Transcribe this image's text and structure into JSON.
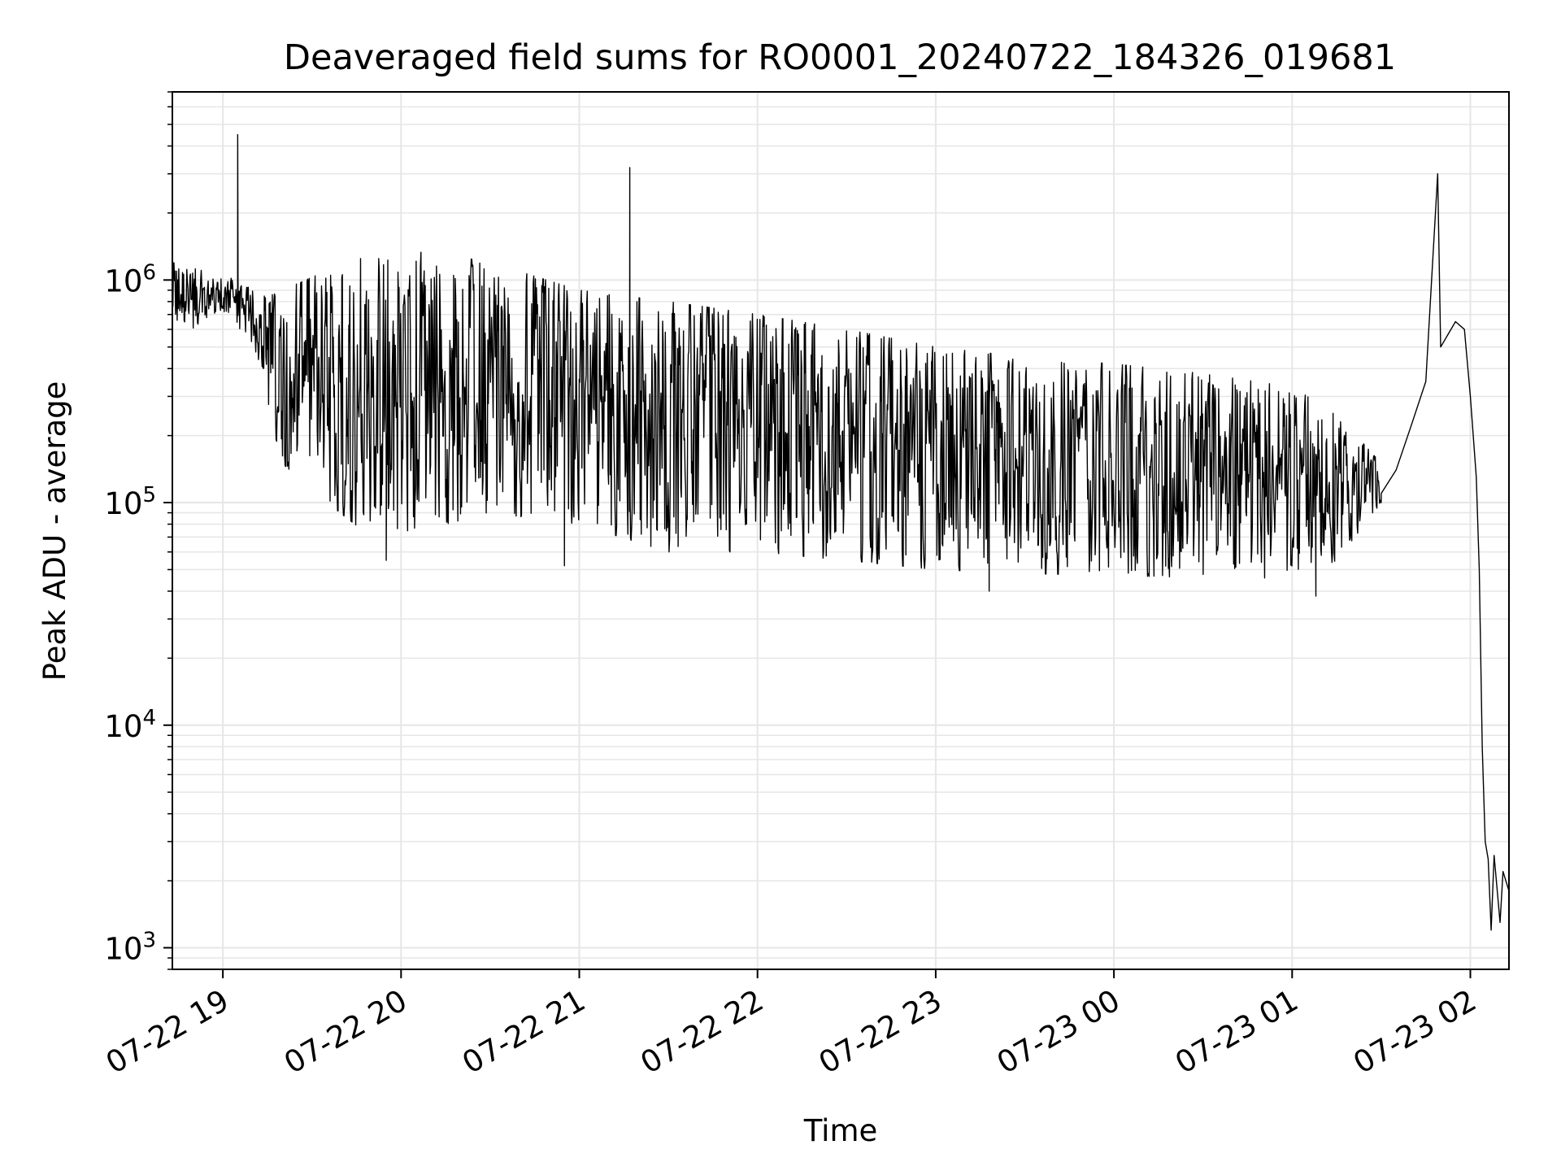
{
  "chart_data": {
    "type": "line",
    "title": "Deaveraged field sums for RO0001_20240722_184326_019681",
    "xlabel": "Time",
    "ylabel": "Peak ADU - average",
    "yscale": "log",
    "ylim": [
      800,
      7000000
    ],
    "xlim": [
      "2024-07-22 18:43",
      "2024-07-23 02:13"
    ],
    "grid": true,
    "line_color": "#000000",
    "grid_color": "#e6e6e6",
    "x_ticks": [
      {
        "t": "2024-07-22 19:00",
        "label": "07-22 19"
      },
      {
        "t": "2024-07-22 20:00",
        "label": "07-22 20"
      },
      {
        "t": "2024-07-22 21:00",
        "label": "07-22 21"
      },
      {
        "t": "2024-07-22 22:00",
        "label": "07-22 22"
      },
      {
        "t": "2024-07-22 23:00",
        "label": "07-22 23"
      },
      {
        "t": "2024-07-23 00:00",
        "label": "07-23 00"
      },
      {
        "t": "2024-07-23 01:00",
        "label": "07-23 01"
      },
      {
        "t": "2024-07-23 02:00",
        "label": "07-23 02"
      }
    ],
    "y_ticks": [
      {
        "v": 1000,
        "base": "10",
        "exp": "3"
      },
      {
        "v": 10000,
        "base": "10",
        "exp": "4"
      },
      {
        "v": 100000,
        "base": "10",
        "exp": "5"
      },
      {
        "v": 1000000,
        "base": "10",
        "exp": "6"
      }
    ],
    "series": [
      {
        "envelope": [
          {
            "t": "2024-07-22 18:43",
            "low": 600000,
            "high": 1200000
          },
          {
            "t": "2024-07-22 19:05",
            "low": 600000,
            "high": 1000000
          },
          {
            "t": "2024-07-22 19:10",
            "low": 500000,
            "high": 900000
          },
          {
            "t": "2024-07-22 19:20",
            "low": 150000,
            "high": 900000
          },
          {
            "t": "2024-07-22 19:35",
            "low": 100000,
            "high": 1100000
          },
          {
            "t": "2024-07-22 19:50",
            "low": 70000,
            "high": 1400000
          },
          {
            "t": "2024-07-22 20:15",
            "low": 80000,
            "high": 1300000
          },
          {
            "t": "2024-07-22 20:30",
            "low": 90000,
            "high": 1200000
          },
          {
            "t": "2024-07-22 21:00",
            "low": 80000,
            "high": 900000
          },
          {
            "t": "2024-07-22 21:30",
            "low": 60000,
            "high": 800000
          },
          {
            "t": "2024-07-22 22:00",
            "low": 60000,
            "high": 700000
          },
          {
            "t": "2024-07-22 22:30",
            "low": 55000,
            "high": 600000
          },
          {
            "t": "2024-07-22 23:00",
            "low": 50000,
            "high": 500000
          },
          {
            "t": "2024-07-22 23:30",
            "low": 48000,
            "high": 450000
          },
          {
            "t": "2024-07-23 00:00",
            "low": 47000,
            "high": 420000
          },
          {
            "t": "2024-07-23 00:30",
            "low": 46000,
            "high": 380000
          },
          {
            "t": "2024-07-23 01:00",
            "low": 45000,
            "high": 330000
          },
          {
            "t": "2024-07-23 01:15",
            "low": 55000,
            "high": 250000
          },
          {
            "t": "2024-07-23 01:30",
            "low": 100000,
            "high": 150000
          }
        ],
        "points": [
          {
            "t": "2024-07-22 19:05",
            "v": 4500000
          },
          {
            "t": "2024-07-22 21:17",
            "v": 3200000
          },
          {
            "t": "2024-07-22 19:55",
            "v": 55000
          },
          {
            "t": "2024-07-22 20:55",
            "v": 52000
          },
          {
            "t": "2024-07-22 23:18",
            "v": 40000
          },
          {
            "t": "2024-07-23 01:08",
            "v": 38000
          },
          {
            "t": "2024-07-23 01:30",
            "v": 110000
          },
          {
            "t": "2024-07-23 01:35",
            "v": 140000
          },
          {
            "t": "2024-07-23 01:40",
            "v": 220000
          },
          {
            "t": "2024-07-23 01:45",
            "v": 350000
          },
          {
            "t": "2024-07-23 01:49",
            "v": 3000000
          },
          {
            "t": "2024-07-23 01:50",
            "v": 500000
          },
          {
            "t": "2024-07-23 01:55",
            "v": 650000
          },
          {
            "t": "2024-07-23 01:58",
            "v": 600000
          },
          {
            "t": "2024-07-23 02:00",
            "v": 300000
          },
          {
            "t": "2024-07-23 02:02",
            "v": 130000
          },
          {
            "t": "2024-07-23 02:03",
            "v": 50000
          },
          {
            "t": "2024-07-23 02:04",
            "v": 8000
          },
          {
            "t": "2024-07-23 02:05",
            "v": 3000
          },
          {
            "t": "2024-07-23 02:06",
            "v": 2500
          },
          {
            "t": "2024-07-23 02:07",
            "v": 1200
          },
          {
            "t": "2024-07-23 02:08",
            "v": 2600
          },
          {
            "t": "2024-07-23 02:10",
            "v": 1300
          },
          {
            "t": "2024-07-23 02:11",
            "v": 2200
          },
          {
            "t": "2024-07-23 02:13",
            "v": 1800
          }
        ]
      }
    ]
  }
}
